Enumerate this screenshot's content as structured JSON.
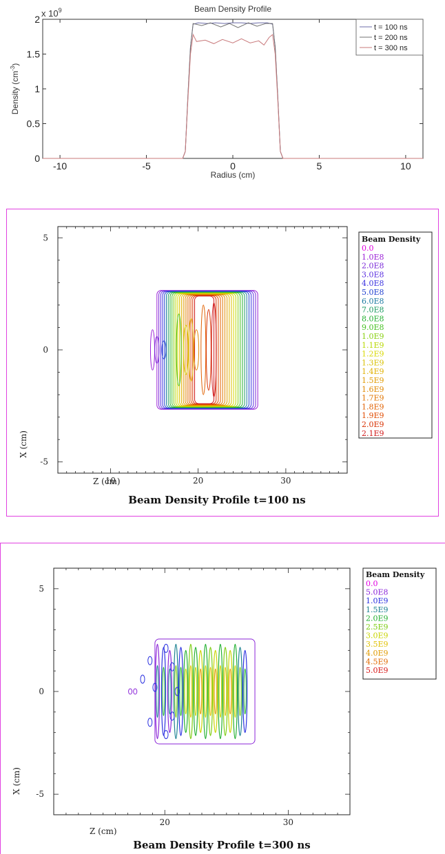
{
  "chart_data": [
    {
      "type": "line",
      "title": "Beam Density Profile",
      "xlabel": "Radius (cm)",
      "ylabel": "Density (cm",
      "ylabel_sup": "-3",
      "ylabel_tail": ")",
      "y_exponent_label": "x 10",
      "y_exponent_sup": "9",
      "xlim": [
        -11,
        11
      ],
      "ylim": [
        0,
        2
      ],
      "x_ticks": [
        -10,
        -5,
        0,
        5,
        10
      ],
      "y_ticks": [
        0,
        0.5,
        1,
        1.5,
        2
      ],
      "x_tick_labels": [
        "-10",
        "-5",
        "0",
        "5",
        "10"
      ],
      "y_tick_labels": [
        "0",
        "0.5",
        "1",
        "1.5",
        "2"
      ],
      "legend_position": "top-right",
      "series": [
        {
          "name": "t = 100 ns",
          "color": "#6b6ba8",
          "points": [
            [
              -11,
              0
            ],
            [
              -2.9,
              0
            ],
            [
              -2.75,
              0.1
            ],
            [
              -2.6,
              0.9
            ],
            [
              -2.45,
              1.6
            ],
            [
              -2.3,
              1.93
            ],
            [
              -2.0,
              1.95
            ],
            [
              -1.5,
              1.94
            ],
            [
              -1,
              1.95
            ],
            [
              -0.5,
              1.94
            ],
            [
              0,
              1.95
            ],
            [
              0.5,
              1.95
            ],
            [
              1,
              1.94
            ],
            [
              1.5,
              1.95
            ],
            [
              2.0,
              1.95
            ],
            [
              2.3,
              1.93
            ],
            [
              2.45,
              1.6
            ],
            [
              2.6,
              0.9
            ],
            [
              2.75,
              0.1
            ],
            [
              2.9,
              0
            ],
            [
              11,
              0
            ]
          ]
        },
        {
          "name": "t = 200 ns",
          "color": "#707070",
          "points": [
            [
              -11,
              0
            ],
            [
              -2.9,
              0
            ],
            [
              -2.75,
              0.1
            ],
            [
              -2.6,
              0.9
            ],
            [
              -2.45,
              1.6
            ],
            [
              -2.3,
              1.94
            ],
            [
              -1.8,
              1.91
            ],
            [
              -1.3,
              1.95
            ],
            [
              -0.7,
              1.89
            ],
            [
              -0.2,
              1.94
            ],
            [
              0.3,
              1.88
            ],
            [
              0.9,
              1.95
            ],
            [
              1.4,
              1.9
            ],
            [
              1.9,
              1.94
            ],
            [
              2.3,
              1.94
            ],
            [
              2.45,
              1.6
            ],
            [
              2.6,
              0.9
            ],
            [
              2.75,
              0.1
            ],
            [
              2.9,
              0
            ],
            [
              11,
              0
            ]
          ]
        },
        {
          "name": "t = 300 ns",
          "color": "#c8787a",
          "points": [
            [
              -11,
              0
            ],
            [
              -2.9,
              0
            ],
            [
              -2.75,
              0.1
            ],
            [
              -2.6,
              0.85
            ],
            [
              -2.45,
              1.5
            ],
            [
              -2.3,
              1.78
            ],
            [
              -2.1,
              1.68
            ],
            [
              -1.6,
              1.7
            ],
            [
              -1.1,
              1.65
            ],
            [
              -0.6,
              1.71
            ],
            [
              0,
              1.66
            ],
            [
              0.5,
              1.72
            ],
            [
              1.0,
              1.66
            ],
            [
              1.5,
              1.69
            ],
            [
              1.8,
              1.63
            ],
            [
              2.1,
              1.74
            ],
            [
              2.3,
              1.78
            ],
            [
              2.45,
              1.5
            ],
            [
              2.6,
              0.85
            ],
            [
              2.75,
              0.1
            ],
            [
              2.9,
              0
            ],
            [
              11,
              0
            ]
          ]
        }
      ]
    },
    {
      "type": "contour",
      "title": "Beam Density Profile  t=100 ns",
      "xlabel": "Z (cm)",
      "ylabel": "X (cm)",
      "xlim": [
        4,
        37
      ],
      "ylim": [
        -5.5,
        5.5
      ],
      "x_tick_labels": [
        "10",
        "20",
        "30"
      ],
      "y_tick_labels": [
        "5",
        "0",
        "-5"
      ],
      "x_ticks": [
        10,
        20,
        30
      ],
      "y_ticks": [
        5,
        0,
        -5
      ],
      "legend_title": "Beam Density",
      "legend_position": "right",
      "levels": [
        "0.0",
        "1.0E8",
        "2.0E8",
        "3.0E8",
        "4.0E8",
        "5.0E8",
        "6.0E8",
        "7.0E8",
        "8.0E8",
        "9.0E8",
        "1.0E9",
        "1.1E9",
        "1.2E9",
        "1.3E9",
        "1.4E9",
        "1.5E9",
        "1.6E9",
        "1.7E9",
        "1.8E9",
        "1.9E9",
        "2.0E9",
        "2.1E9"
      ],
      "level_colors": [
        "#e000e0",
        "#9a1fd6",
        "#7a28d8",
        "#5a2ee0",
        "#3a32e0",
        "#2040d0",
        "#1a78a0",
        "#1a9a60",
        "#22b030",
        "#44c020",
        "#88d010",
        "#b8d800",
        "#d8d800",
        "#d8c000",
        "#e0b000",
        "#e09a00",
        "#e08800",
        "#e07400",
        "#e06000",
        "#e04a00",
        "#d83000",
        "#d01818"
      ]
    },
    {
      "type": "contour",
      "title": "Beam Density Profile  t=300 ns",
      "xlabel": "Z (cm)",
      "ylabel": "X (cm)",
      "xlim": [
        11,
        35
      ],
      "ylim": [
        -6,
        6
      ],
      "x_tick_labels": [
        "20",
        "30"
      ],
      "y_tick_labels": [
        "5",
        "0",
        "-5"
      ],
      "x_ticks": [
        20,
        30
      ],
      "y_ticks": [
        5,
        0,
        -5
      ],
      "legend_title": "Beam Density",
      "legend_position": "right",
      "levels": [
        "0.0",
        "5.0E8",
        "1.0E9",
        "1.5E9",
        "2.0E9",
        "2.5E9",
        "3.0E9",
        "3.5E9",
        "4.0E9",
        "4.5E9",
        "5.0E9"
      ],
      "level_colors": [
        "#e000e0",
        "#8a24d8",
        "#2a30e0",
        "#1a8090",
        "#22b030",
        "#7ccc10",
        "#c8d400",
        "#e0c000",
        "#e09a00",
        "#e06a00",
        "#d81818"
      ]
    }
  ]
}
